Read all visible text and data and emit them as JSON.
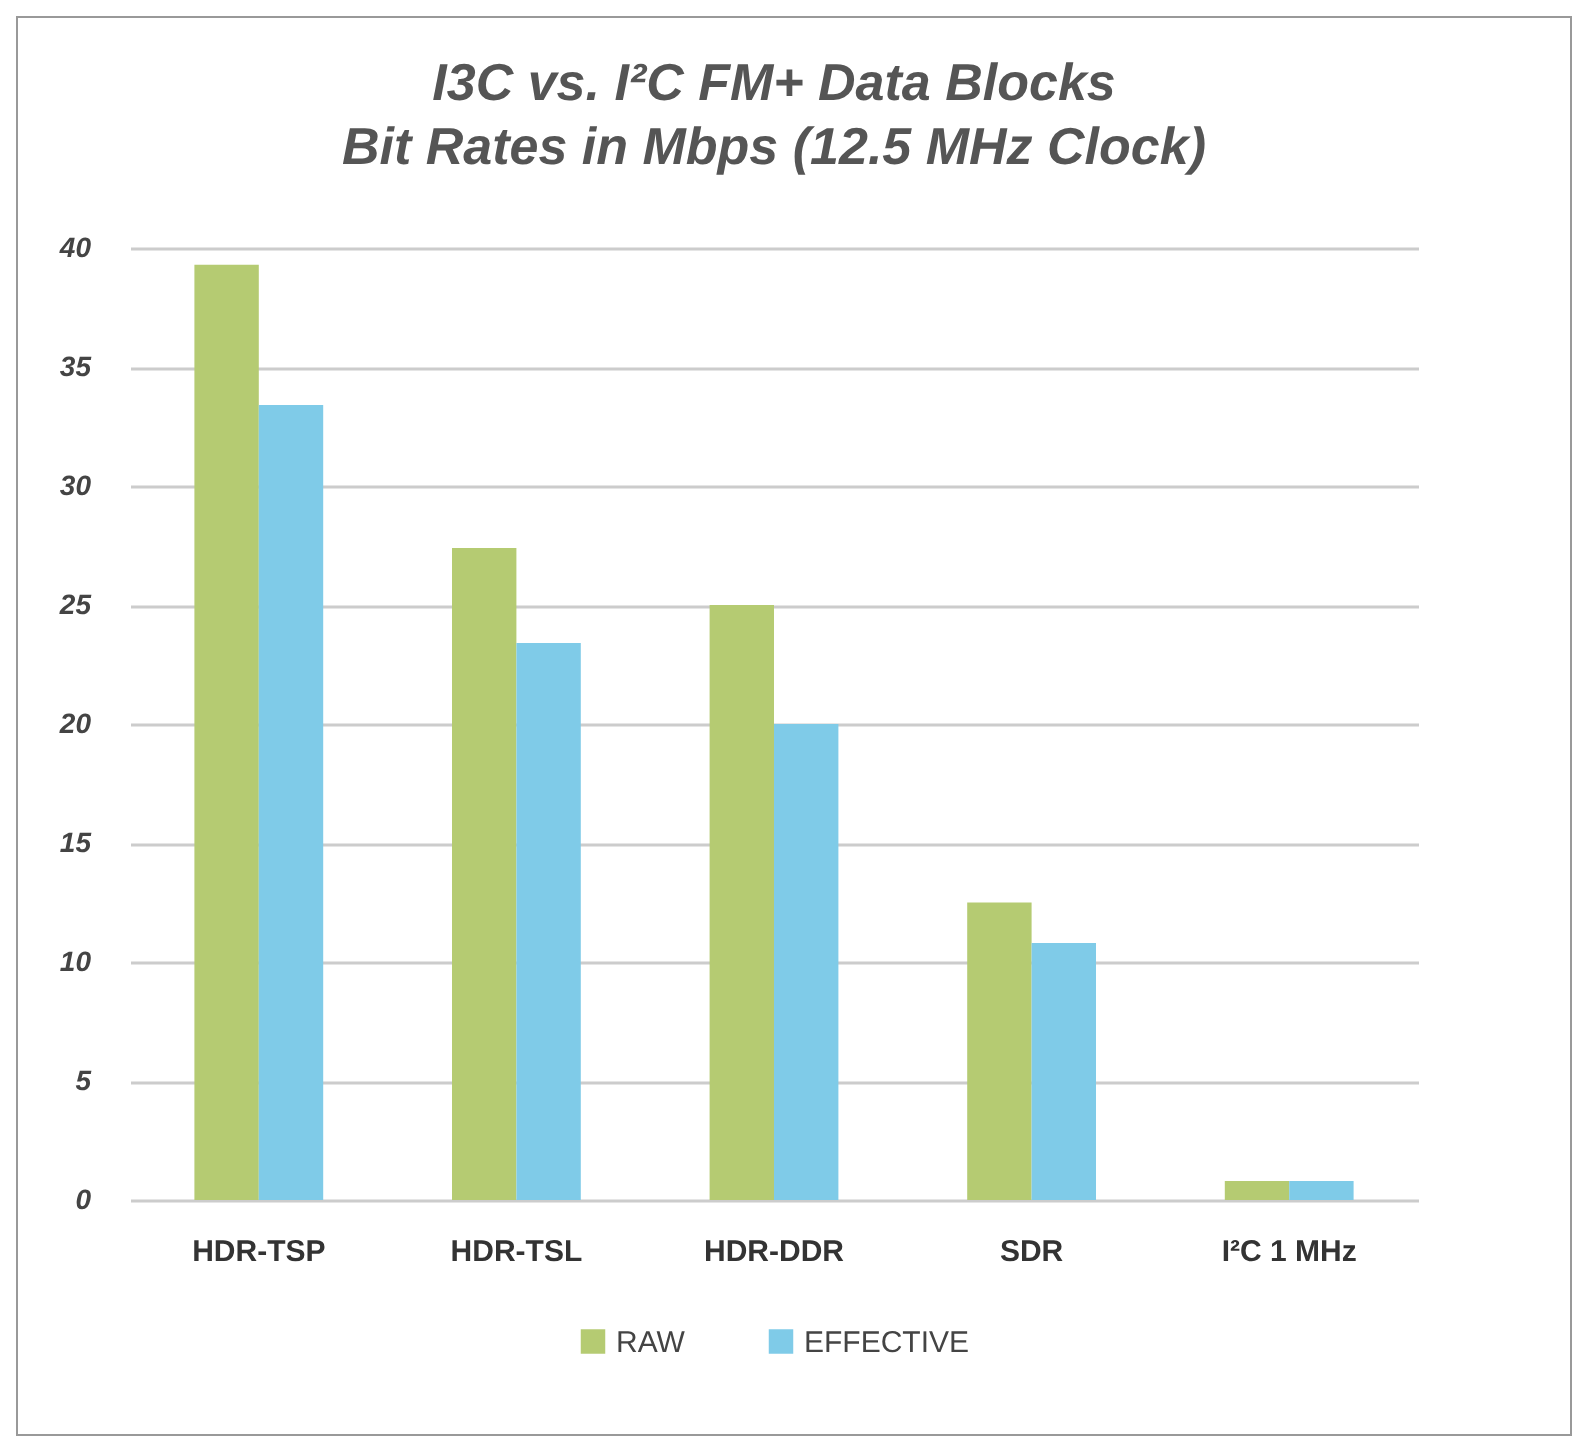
{
  "chart_data": {
    "type": "bar",
    "title": "I3C vs. I²C FM+ Data Blocks",
    "subtitle": "Bit Rates in Mbps (12.5 MHz Clock)",
    "categories": [
      "HDR-TSP",
      "HDR-TSL",
      "HDR-DDR",
      "SDR",
      "I²C 1 MHz"
    ],
    "series": [
      {
        "name": "RAW",
        "color": "#b5cb72",
        "values": [
          39.3,
          27.4,
          25,
          12.5,
          0.8
        ]
      },
      {
        "name": "EFFECTIVE",
        "color": "#7fcbe8",
        "values": [
          33.4,
          23.4,
          20,
          10.8,
          0.8
        ]
      }
    ],
    "ylim": [
      0,
      40
    ],
    "yticks": [
      0,
      5,
      10,
      15,
      20,
      25,
      30,
      35,
      40
    ],
    "grid": "y",
    "legend": "bottom"
  }
}
